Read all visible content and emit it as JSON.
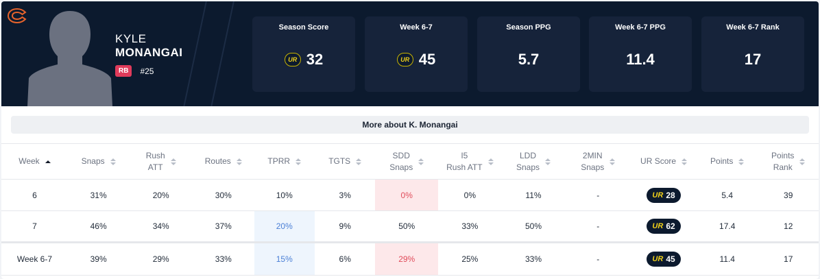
{
  "player": {
    "first_name": "KYLE",
    "last_name": "MONANGAI",
    "position": "RB",
    "jersey": "#25",
    "team_logo": "chicago-bears-c-icon"
  },
  "stat_cards": [
    {
      "label": "Season Score",
      "value": "32",
      "has_ur_logo": true
    },
    {
      "label": "Week 6-7",
      "value": "45",
      "has_ur_logo": true
    },
    {
      "label": "Season PPG",
      "value": "5.7",
      "has_ur_logo": false
    },
    {
      "label": "Week 6-7 PPG",
      "value": "11.4",
      "has_ur_logo": false
    },
    {
      "label": "Week 6-7 Rank",
      "value": "17",
      "has_ur_logo": false
    }
  ],
  "ur_logo_text": "UR",
  "more_button": "More about K. Monangai",
  "table": {
    "columns": [
      {
        "l1": "Week",
        "l2": "",
        "active": true
      },
      {
        "l1": "Snaps",
        "l2": ""
      },
      {
        "l1": "Rush",
        "l2": "ATT"
      },
      {
        "l1": "Routes",
        "l2": ""
      },
      {
        "l1": "TPRR",
        "l2": ""
      },
      {
        "l1": "TGTS",
        "l2": ""
      },
      {
        "l1": "SDD",
        "l2": "Snaps"
      },
      {
        "l1": "I5",
        "l2": "Rush ATT"
      },
      {
        "l1": "LDD",
        "l2": "Snaps"
      },
      {
        "l1": "2MIN",
        "l2": "Snaps"
      },
      {
        "l1": "UR Score",
        "l2": ""
      },
      {
        "l1": "Points",
        "l2": ""
      },
      {
        "l1": "Points",
        "l2": "Rank"
      }
    ],
    "rows": [
      {
        "week": "6",
        "snaps": "31%",
        "rush_att": "20%",
        "routes": "30%",
        "tprr": "10%",
        "tgts": "3%",
        "sdd_snaps": "0%",
        "i5_rush_att": "0%",
        "ldd_snaps": "11%",
        "two_min_snaps": "-",
        "ur_score": "28",
        "points": "5.4",
        "points_rank": "39"
      },
      {
        "week": "7",
        "snaps": "46%",
        "rush_att": "34%",
        "routes": "37%",
        "tprr": "20%",
        "tgts": "9%",
        "sdd_snaps": "50%",
        "i5_rush_att": "33%",
        "ldd_snaps": "50%",
        "two_min_snaps": "-",
        "ur_score": "62",
        "points": "17.4",
        "points_rank": "12"
      }
    ],
    "summary": {
      "week": "Week 6-7",
      "snaps": "39%",
      "rush_att": "29%",
      "routes": "33%",
      "tprr": "15%",
      "tgts": "6%",
      "sdd_snaps": "29%",
      "i5_rush_att": "25%",
      "ldd_snaps": "33%",
      "two_min_snaps": "-",
      "ur_score": "45",
      "points": "11.4",
      "points_rank": "17"
    }
  },
  "colors": {
    "header_bg": "#0c1a2e",
    "card_bg": "#16233a",
    "accent_yellow": "#f2d21a",
    "badge_red": "#e03b5b",
    "highlight_red": "#fde8ea",
    "highlight_blue": "#eef5fd"
  }
}
